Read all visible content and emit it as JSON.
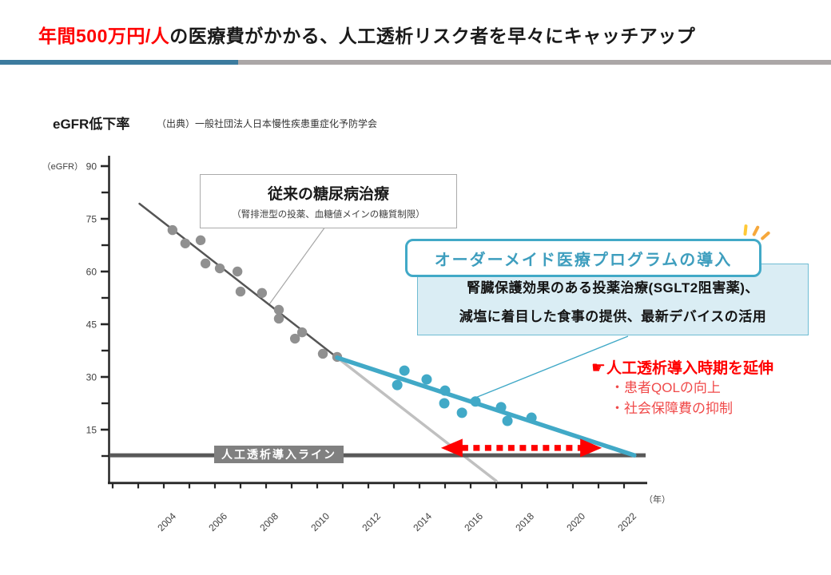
{
  "slide": {
    "title_highlight": "年間500万円/人",
    "title_rest": "の医療費がかかる、人工透析リスク者を早々にキャッチアップ",
    "accent_blue": "#3c7b9e",
    "accent_gray": "#aba7a7"
  },
  "chart_header": {
    "title": "eGFR低下率",
    "source": "（出典）一般社団法人日本慢性疾患重症化予防学会"
  },
  "chart_data": {
    "type": "scatter",
    "y_axis": {
      "label": "（eGFR）",
      "range": [
        0,
        90
      ],
      "major_ticks": [
        90,
        75,
        60,
        45,
        30,
        15
      ],
      "minor_ticks": [
        82.5,
        67.5,
        52.5,
        37.5,
        22.5,
        7.5
      ]
    },
    "x_axis": {
      "label": "（年）",
      "range": [
        2002,
        2022
      ],
      "tick_step": 1,
      "labeled_years": [
        2004,
        2006,
        2008,
        2010,
        2012,
        2014,
        2016,
        2018,
        2020,
        2022
      ]
    },
    "grid": false,
    "legend": false,
    "series": {
      "conventional_points": {
        "color": "#909090",
        "points": [
          [
            2004.34,
            71.8
          ],
          [
            2004.84,
            68.0
          ],
          [
            2005.44,
            68.9
          ],
          [
            2005.63,
            62.3
          ],
          [
            2006.19,
            60.9
          ],
          [
            2006.88,
            60.0
          ],
          [
            2007.0,
            54.3
          ],
          [
            2007.84,
            53.9
          ],
          [
            2008.5,
            49.1
          ],
          [
            2008.5,
            46.6
          ],
          [
            2009.13,
            40.9
          ],
          [
            2009.41,
            42.7
          ],
          [
            2010.22,
            36.6
          ],
          [
            2010.78,
            35.7
          ]
        ]
      },
      "program_points": {
        "color": "#41a9c7",
        "points": [
          [
            2013.13,
            27.7
          ],
          [
            2013.41,
            31.8
          ],
          [
            2014.28,
            29.3
          ],
          [
            2014.97,
            22.5
          ],
          [
            2015.0,
            26.1
          ],
          [
            2015.66,
            19.8
          ],
          [
            2016.19,
            23.0
          ],
          [
            2017.19,
            21.4
          ],
          [
            2017.44,
            17.5
          ],
          [
            2018.38,
            18.4
          ]
        ]
      }
    },
    "trend_lines": [
      {
        "id": "conventional-trend",
        "color": "#555555",
        "width": 2.5,
        "from": [
          2003.05,
          79.3
        ],
        "to": [
          2010.78,
          35.5
        ]
      },
      {
        "id": "projection-trend",
        "color": "#c0c0c0",
        "width": 3.5,
        "from": [
          2010.78,
          35.5
        ],
        "to": [
          2017.0,
          0.4
        ]
      },
      {
        "id": "program-trend",
        "color": "#41a9c7",
        "width": 5.5,
        "from": [
          2010.78,
          35.5
        ],
        "to": [
          2022.4,
          7.7
        ]
      }
    ],
    "dialysis_line": {
      "value": 7.7,
      "color": "#595959",
      "label": "人工透析導入ライン"
    },
    "extension_arrow": {
      "value": 9.8,
      "from_year": 2014.84,
      "to_year": 2021.13,
      "color": "#ff0000"
    }
  },
  "annotations": {
    "conventional_box": {
      "title": "従来の糖尿病治療",
      "subtitle": "（腎排泄型の投薬、血糖値メインの糖質制限）"
    },
    "program_box": {
      "title": "オーダーメイド医療プログラムの導入",
      "body_line1": "腎臓保護効果のある投薬治療(SGLT2阻害薬)、",
      "body_line2": "減塩に着目した食事の提供、最新デバイスの活用"
    },
    "benefit": {
      "pointer": "☛",
      "title": "人工透析導入時期を延伸",
      "items": [
        "・患者QOLの向上",
        "・社会保障費の抑制"
      ]
    }
  }
}
